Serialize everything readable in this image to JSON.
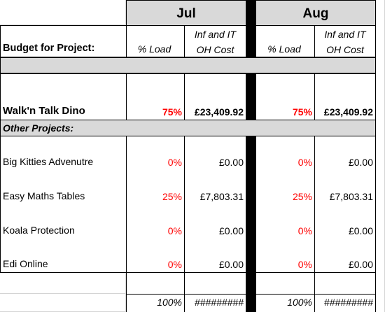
{
  "header": {
    "months": [
      "Jul",
      "Aug"
    ],
    "budget_label": "Budget for Project:",
    "load_label": "% Load",
    "cost_label_line1": "Inf and IT",
    "cost_label_line2": "OH Cost"
  },
  "main_project": {
    "name": "Walk'n Talk Dino",
    "jul_load": "75%",
    "jul_cost": "£23,409.92",
    "aug_load": "75%",
    "aug_cost": "£23,409.92"
  },
  "other_label": "Other Projects:",
  "projects": [
    {
      "name": "Big Kitties Advenutre",
      "jul_load": "0%",
      "jul_cost": "£0.00",
      "aug_load": "0%",
      "aug_cost": "£0.00"
    },
    {
      "name": "Easy Maths Tables",
      "jul_load": "25%",
      "jul_cost": "£7,803.31",
      "aug_load": "25%",
      "aug_cost": "£7,803.31"
    },
    {
      "name": "Koala Protection",
      "jul_load": "0%",
      "jul_cost": "£0.00",
      "aug_load": "0%",
      "aug_cost": "£0.00"
    },
    {
      "name": "Edi Online",
      "jul_load": "0%",
      "jul_cost": "£0.00",
      "aug_load": "0%",
      "aug_cost": "£0.00"
    }
  ],
  "totals": {
    "jul_load": "100%",
    "jul_cost": "#########",
    "aug_load": "100%",
    "aug_cost": "#########"
  },
  "colors": {
    "header_fill": "#d9d9d9",
    "separator": "#000000",
    "percent_text": "#ff0000"
  }
}
